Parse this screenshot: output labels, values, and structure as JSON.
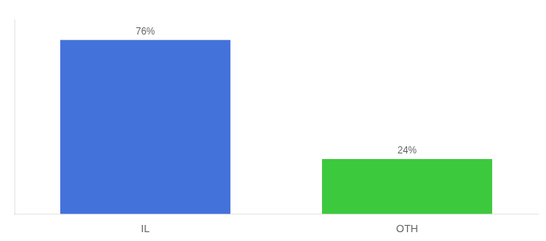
{
  "chart_data": {
    "type": "bar",
    "categories": [
      "IL",
      "OTH"
    ],
    "values": [
      76,
      24
    ],
    "colors": [
      "#4472db",
      "#3dc93d"
    ],
    "value_labels": [
      "76%",
      "24%"
    ],
    "data_labels": true,
    "ylim": [
      0,
      85
    ],
    "grid": false,
    "tick_labels": "x"
  }
}
